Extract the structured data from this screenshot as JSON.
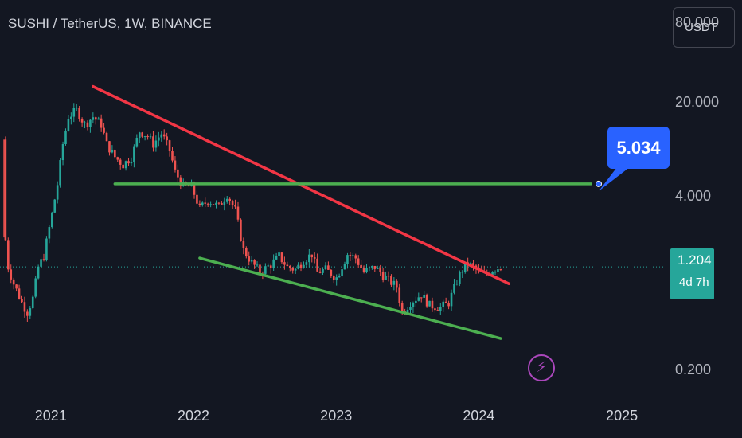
{
  "header": {
    "title": "SUSHI / TetherUS, 1W, BINANCE",
    "currency": "USDT"
  },
  "price_tag": {
    "value": "1.204",
    "countdown": "4d 7h"
  },
  "target_label": "5.034",
  "colors": {
    "up": "#26a69a",
    "down": "#ef5350",
    "resistance": "#f23645",
    "support": "#4caf50",
    "label": "#2962ff",
    "accent": "#ab47bc"
  },
  "icons": {
    "flash": "lightning-bolt-icon"
  },
  "chart_data": {
    "type": "candlestick",
    "title": "SUSHI / TetherUS, 1W, BINANCE",
    "y_scale": "log",
    "ylim": [
      0.125,
      120
    ],
    "y_ticks": [
      "80.000",
      "20.000",
      "4.000",
      "0.200"
    ],
    "x_ticks": [
      "2021",
      "2022",
      "2023",
      "2024",
      "2025"
    ],
    "x_range": [
      "2020-08-24",
      "2025-05-01"
    ],
    "last_price": 1.204,
    "price_path": [
      {
        "date": "2020-08-31",
        "price": 10.8
      },
      {
        "date": "2020-09-03",
        "price": 2.5
      },
      {
        "date": "2020-09-14",
        "price": 1.2
      },
      {
        "date": "2020-09-28",
        "price": 0.9
      },
      {
        "date": "2020-10-19",
        "price": 0.65
      },
      {
        "date": "2020-11-02",
        "price": 0.55
      },
      {
        "date": "2020-11-16",
        "price": 0.7
      },
      {
        "date": "2020-11-30",
        "price": 1.2
      },
      {
        "date": "2020-12-14",
        "price": 1.45
      },
      {
        "date": "2021-01-04",
        "price": 3.0
      },
      {
        "date": "2021-01-18",
        "price": 5.0
      },
      {
        "date": "2021-02-01",
        "price": 10.0
      },
      {
        "date": "2021-02-15",
        "price": 16.0
      },
      {
        "date": "2021-03-08",
        "price": 18.0
      },
      {
        "date": "2021-03-29",
        "price": 14.0
      },
      {
        "date": "2021-04-19",
        "price": 16.0
      },
      {
        "date": "2021-05-10",
        "price": 14.0
      },
      {
        "date": "2021-05-24",
        "price": 10.0
      },
      {
        "date": "2021-06-14",
        "price": 8.0
      },
      {
        "date": "2021-07-05",
        "price": 7.0
      },
      {
        "date": "2021-07-26",
        "price": 8.0
      },
      {
        "date": "2021-08-16",
        "price": 12.5
      },
      {
        "date": "2021-09-06",
        "price": 11.5
      },
      {
        "date": "2021-09-20",
        "price": 10.0
      },
      {
        "date": "2021-10-11",
        "price": 12.0
      },
      {
        "date": "2021-11-01",
        "price": 9.0
      },
      {
        "date": "2021-11-15",
        "price": 6.2
      },
      {
        "date": "2021-12-06",
        "price": 4.8
      },
      {
        "date": "2021-12-27",
        "price": 4.8
      },
      {
        "date": "2022-01-17",
        "price": 3.3
      },
      {
        "date": "2022-02-07",
        "price": 3.8
      },
      {
        "date": "2022-03-07",
        "price": 3.4
      },
      {
        "date": "2022-03-28",
        "price": 4.2
      },
      {
        "date": "2022-04-18",
        "price": 3.2
      },
      {
        "date": "2022-05-09",
        "price": 1.6
      },
      {
        "date": "2022-05-30",
        "price": 1.3
      },
      {
        "date": "2022-06-20",
        "price": 1.1
      },
      {
        "date": "2022-07-18",
        "price": 1.25
      },
      {
        "date": "2022-08-08",
        "price": 1.45
      },
      {
        "date": "2022-08-29",
        "price": 1.2
      },
      {
        "date": "2022-09-19",
        "price": 1.15
      },
      {
        "date": "2022-10-10",
        "price": 1.35
      },
      {
        "date": "2022-10-31",
        "price": 1.5
      },
      {
        "date": "2022-11-14",
        "price": 1.1
      },
      {
        "date": "2022-12-05",
        "price": 1.15
      },
      {
        "date": "2023-01-02",
        "price": 1.0
      },
      {
        "date": "2023-01-30",
        "price": 1.5
      },
      {
        "date": "2023-02-20",
        "price": 1.4
      },
      {
        "date": "2023-03-13",
        "price": 1.1
      },
      {
        "date": "2023-04-10",
        "price": 1.2
      },
      {
        "date": "2023-05-08",
        "price": 1.0
      },
      {
        "date": "2023-06-05",
        "price": 0.85
      },
      {
        "date": "2023-06-19",
        "price": 0.55
      },
      {
        "date": "2023-07-10",
        "price": 0.65
      },
      {
        "date": "2023-08-07",
        "price": 0.75
      },
      {
        "date": "2023-08-28",
        "price": 0.62
      },
      {
        "date": "2023-09-25",
        "price": 0.6
      },
      {
        "date": "2023-10-16",
        "price": 0.65
      },
      {
        "date": "2023-11-06",
        "price": 0.95
      },
      {
        "date": "2023-11-20",
        "price": 1.15
      },
      {
        "date": "2023-12-04",
        "price": 1.28
      },
      {
        "date": "2023-12-25",
        "price": 1.15
      },
      {
        "date": "2024-01-15",
        "price": 1.05
      },
      {
        "date": "2024-02-05",
        "price": 1.15
      },
      {
        "date": "2024-02-26",
        "price": 1.204
      }
    ],
    "annotations": [
      {
        "name": "resistance-trendline",
        "color": "#f23645",
        "from": {
          "date": "2021-04-19",
          "price": 27.0
        },
        "to": {
          "date": "2024-03-18",
          "price": 0.9
        }
      },
      {
        "name": "horizontal-level",
        "color": "#4caf50",
        "price": 5.034,
        "from": "2021-06-14",
        "to": "2024-10-14"
      },
      {
        "name": "support-trendline",
        "color": "#4caf50",
        "from": {
          "date": "2022-01-17",
          "price": 1.4
        },
        "to": {
          "date": "2024-02-26",
          "price": 0.35
        }
      }
    ]
  }
}
